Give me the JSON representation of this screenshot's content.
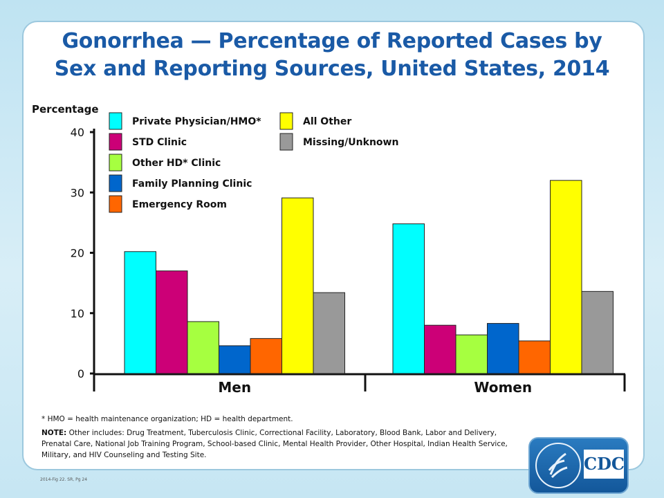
{
  "title_line1": "Gonorrhea — Percentage of Reported Cases by",
  "title_line2": "Sex and Reporting Sources, United States, 2014",
  "chart_data": {
    "type": "bar",
    "title": "Gonorrhea — Percentage of Reported Cases by Sex and Reporting Sources, United States, 2014",
    "ylabel": "Percentage",
    "xlabel": "",
    "ylim": [
      0,
      40
    ],
    "yticks": [
      0,
      10,
      20,
      30,
      40
    ],
    "categories": [
      "Men",
      "Women"
    ],
    "legend_placement": "top",
    "series": [
      {
        "name": "Private Physician/HMO*",
        "color": "#00ffff",
        "values": [
          20.2,
          24.8
        ]
      },
      {
        "name": "STD Clinic",
        "color": "#cc0077",
        "values": [
          17.0,
          8.0
        ]
      },
      {
        "name": "Other HD* Clinic",
        "color": "#a6ff40",
        "values": [
          8.6,
          6.4
        ]
      },
      {
        "name": "Family Planning Clinic",
        "color": "#0066cc",
        "values": [
          4.6,
          8.3
        ]
      },
      {
        "name": "Emergency Room",
        "color": "#ff6600",
        "values": [
          5.8,
          5.4
        ]
      },
      {
        "name": "All Other",
        "color": "#ffff00",
        "values": [
          29.1,
          32.0
        ]
      },
      {
        "name": "Missing/Unknown",
        "color": "#999999",
        "values": [
          13.4,
          13.6
        ]
      }
    ]
  },
  "footnote_star": "* HMO = health maintenance organization; HD = health department.",
  "note_label": "NOTE:",
  "note_text": "Other includes: Drug Treatment, Tuberculosis Clinic, Correctional Facility, Laboratory, Blood Bank, Labor and Delivery, Prenatal Care, National Job Training Program, School-based Clinic, Mental Health Provider, Other Hospital, Indian Health Service, Military, and HIV Counseling and Testing Site.",
  "source_tag": "2014-Fig 22. SR, Pg 24",
  "logo_text": "CDC"
}
